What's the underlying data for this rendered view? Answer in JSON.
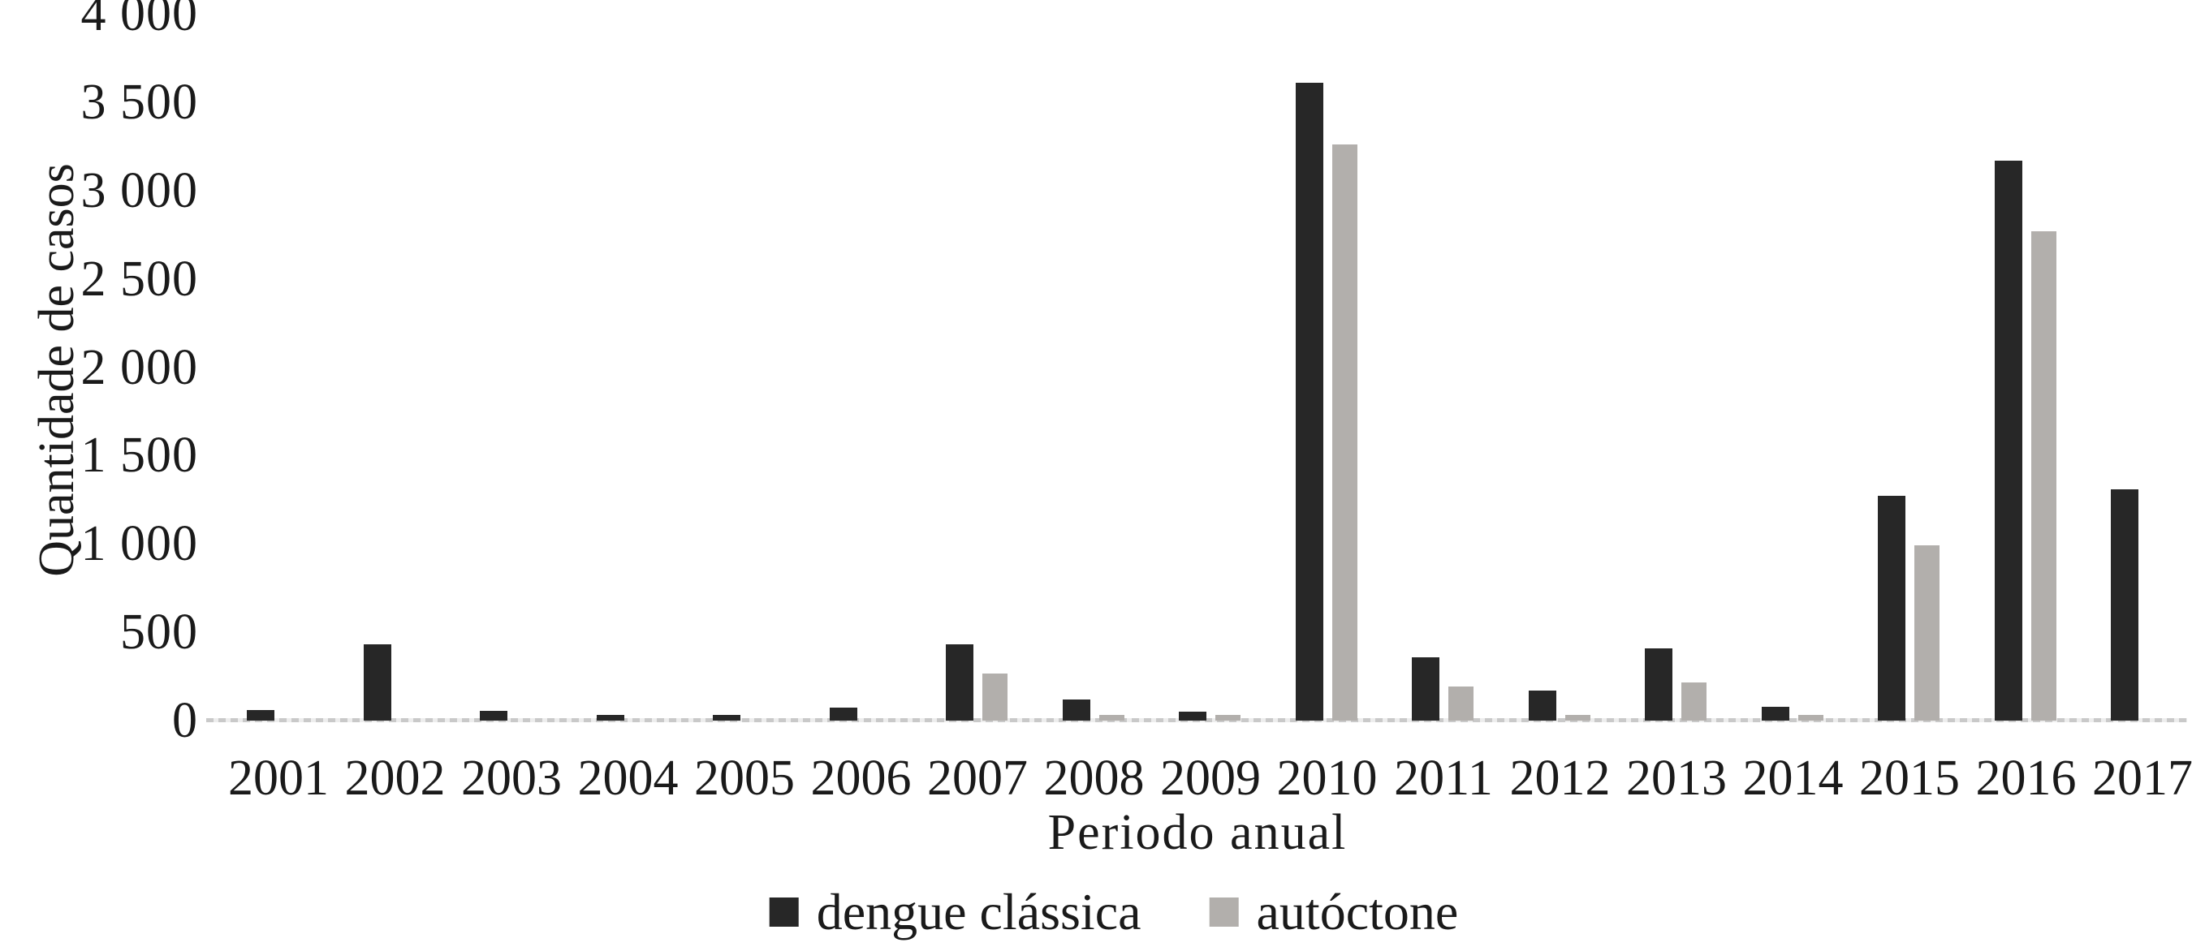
{
  "chart_data": {
    "type": "bar",
    "title": "",
    "xlabel": "Periodo anual",
    "ylabel": "Quantidade de casos",
    "categories": [
      "2001",
      "2002",
      "2003",
      "2004",
      "2005",
      "2006",
      "2007",
      "2008",
      "2009",
      "2010",
      "2011",
      "2012",
      "2013",
      "2014",
      "2015",
      "2016",
      "2017"
    ],
    "series": [
      {
        "name": "dengue clássica",
        "color": "#272727",
        "values": [
          60,
          430,
          55,
          30,
          30,
          75,
          430,
          120,
          50,
          3610,
          360,
          170,
          410,
          80,
          1270,
          3170,
          1310
        ]
      },
      {
        "name": "autóctone",
        "color": "#b2afac",
        "values": [
          0,
          0,
          0,
          0,
          0,
          0,
          265,
          30,
          30,
          3260,
          195,
          30,
          215,
          30,
          990,
          2770,
          0
        ]
      }
    ],
    "ylim": [
      0,
      4000
    ],
    "ytick_step": 500,
    "ytick_labels": [
      "0",
      "500",
      "1 000",
      "1 500",
      "2 000",
      "2 500",
      "3 000",
      "3 500",
      "4 000"
    ],
    "grid": false,
    "legend_position": "bottom",
    "axis_line_color": "#d0d0d0",
    "text_color": "#1a1a1a",
    "background_color": "#ffffff"
  }
}
